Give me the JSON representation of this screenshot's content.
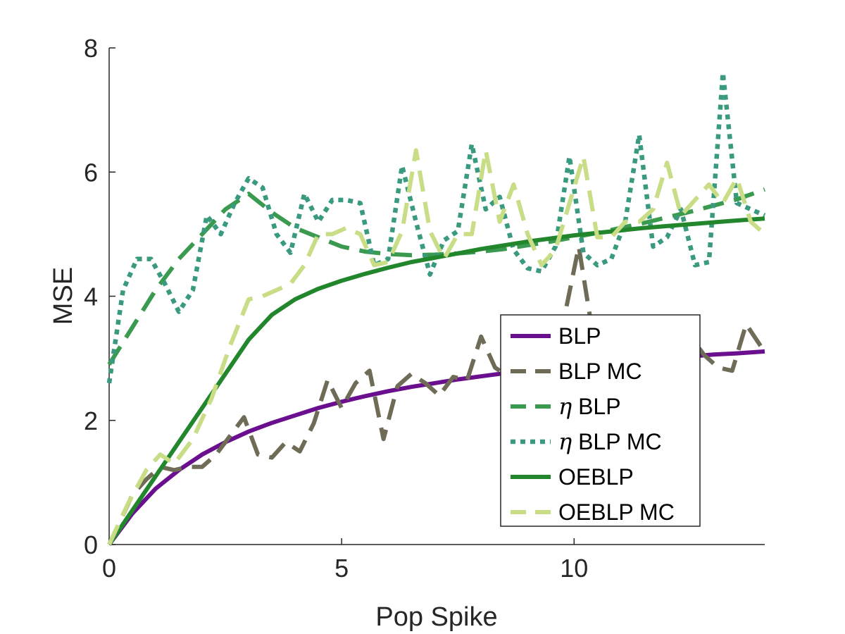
{
  "chart_data": {
    "type": "line",
    "title": "",
    "xlabel": "Pop Spike",
    "ylabel": "MSE",
    "xlim": [
      0,
      14.1
    ],
    "ylim": [
      0,
      8
    ],
    "xticks": [
      0,
      5,
      10
    ],
    "yticks": [
      0,
      2,
      4,
      6,
      8
    ],
    "grid": false,
    "legend_position": "lower-right",
    "series": [
      {
        "name": "BLP",
        "style": "solid",
        "color": "#6a0f8e",
        "x": [
          0,
          0.5,
          1,
          1.5,
          2,
          2.5,
          3,
          3.5,
          4,
          4.5,
          5,
          5.5,
          6,
          6.5,
          7,
          7.5,
          8,
          8.5,
          9,
          9.5,
          10,
          10.5,
          11,
          11.5,
          12,
          12.5,
          13,
          13.5,
          14.1
        ],
        "y": [
          0,
          0.5,
          0.9,
          1.2,
          1.45,
          1.65,
          1.82,
          1.96,
          2.08,
          2.2,
          2.3,
          2.39,
          2.47,
          2.54,
          2.6,
          2.66,
          2.71,
          2.76,
          2.8,
          2.84,
          2.88,
          2.91,
          2.95,
          2.98,
          3.0,
          3.03,
          3.06,
          3.08,
          3.11
        ]
      },
      {
        "name": "BLP MC",
        "style": "dashed",
        "color": "#6e6b56",
        "x": [
          0,
          0.5,
          0.8,
          1.1,
          1.4,
          1.7,
          2.0,
          2.3,
          2.6,
          2.9,
          3.2,
          3.5,
          3.8,
          4.1,
          4.4,
          4.7,
          5.0,
          5.3,
          5.6,
          5.9,
          6.2,
          6.5,
          6.8,
          7.1,
          7.4,
          7.7,
          8.0,
          8.3,
          8.6,
          8.9,
          9.2,
          9.5,
          9.8,
          10.1,
          10.4,
          10.7,
          11.0,
          11.3,
          11.6,
          11.9,
          12.2,
          12.5,
          12.8,
          13.1,
          13.4,
          13.7,
          14.1
        ],
        "y": [
          0,
          0.8,
          1.05,
          1.25,
          1.2,
          1.25,
          1.25,
          1.45,
          1.75,
          2.05,
          1.45,
          1.4,
          1.65,
          1.5,
          1.95,
          2.65,
          2.2,
          2.6,
          2.8,
          1.7,
          2.55,
          2.75,
          2.6,
          2.4,
          2.7,
          2.65,
          3.35,
          2.85,
          2.7,
          2.95,
          3.1,
          3.25,
          3.7,
          4.8,
          3.4,
          3.0,
          3.05,
          3.0,
          2.95,
          3.2,
          3.25,
          3.35,
          3.05,
          2.85,
          2.8,
          3.55,
          3.1
        ]
      },
      {
        "name": "η BLP",
        "style": "dashed",
        "color": "#3a9a4f",
        "x": [
          0,
          0.5,
          1,
          1.5,
          2,
          2.5,
          3,
          3.5,
          4,
          4.5,
          5,
          5.5,
          6,
          6.5,
          7,
          7.5,
          8,
          8.5,
          9,
          9.5,
          10,
          10.5,
          11,
          11.5,
          12,
          12.5,
          13,
          13.5,
          14.1
        ],
        "y": [
          2.9,
          3.5,
          4.1,
          4.6,
          5.0,
          5.4,
          5.65,
          5.35,
          5.1,
          4.95,
          4.8,
          4.72,
          4.68,
          4.66,
          4.67,
          4.69,
          4.72,
          4.76,
          4.82,
          4.88,
          4.95,
          5.02,
          5.1,
          5.18,
          5.27,
          5.36,
          5.46,
          5.56,
          5.72
        ]
      },
      {
        "name": "η BLP MC",
        "style": "dotted",
        "color": "#3a9a7f",
        "x": [
          0,
          0.3,
          0.6,
          0.9,
          1.2,
          1.5,
          1.8,
          2.1,
          2.4,
          2.7,
          3.0,
          3.3,
          3.6,
          3.9,
          4.2,
          4.5,
          4.8,
          5.1,
          5.4,
          5.7,
          6.0,
          6.3,
          6.6,
          6.9,
          7.2,
          7.5,
          7.8,
          8.1,
          8.4,
          8.7,
          9.0,
          9.3,
          9.6,
          9.9,
          10.2,
          10.5,
          10.8,
          11.1,
          11.4,
          11.7,
          12.0,
          12.3,
          12.6,
          12.9,
          13.2,
          13.5,
          13.8,
          14.1
        ],
        "y": [
          2.6,
          4.1,
          4.6,
          4.6,
          4.2,
          3.75,
          4.1,
          5.3,
          5.0,
          5.5,
          5.9,
          5.75,
          5.0,
          4.7,
          5.65,
          5.2,
          5.55,
          5.55,
          5.5,
          4.5,
          4.6,
          6.1,
          5.2,
          4.35,
          4.9,
          5.05,
          6.45,
          5.4,
          5.6,
          4.75,
          4.45,
          4.4,
          4.8,
          6.25,
          4.7,
          4.5,
          4.6,
          5.2,
          6.6,
          4.8,
          4.95,
          5.4,
          4.5,
          4.55,
          7.6,
          5.5,
          5.4,
          5.3
        ]
      },
      {
        "name": "OEBLP",
        "style": "solid",
        "color": "#22862c",
        "x": [
          0,
          0.5,
          1,
          1.5,
          2,
          2.5,
          3,
          3.5,
          4,
          4.5,
          5,
          5.5,
          6,
          6.5,
          7,
          7.5,
          8,
          8.5,
          9,
          9.5,
          10,
          10.5,
          11,
          11.5,
          12,
          12.5,
          13,
          13.5,
          14.1
        ],
        "y": [
          0,
          0.55,
          1.1,
          1.65,
          2.2,
          2.75,
          3.3,
          3.7,
          3.95,
          4.12,
          4.25,
          4.36,
          4.46,
          4.55,
          4.62,
          4.69,
          4.76,
          4.82,
          4.88,
          4.93,
          4.98,
          5.02,
          5.06,
          5.1,
          5.13,
          5.16,
          5.19,
          5.22,
          5.25
        ]
      },
      {
        "name": "OEBLP MC",
        "style": "dashed",
        "color": "#c8dd86",
        "x": [
          0,
          0.4,
          0.8,
          1.1,
          1.4,
          1.8,
          2.2,
          2.6,
          3.0,
          3.3,
          3.6,
          3.9,
          4.2,
          4.5,
          4.8,
          5.1,
          5.4,
          5.7,
          6.0,
          6.3,
          6.6,
          6.9,
          7.2,
          7.5,
          7.8,
          8.1,
          8.4,
          8.7,
          9.0,
          9.3,
          9.6,
          9.9,
          10.2,
          10.5,
          10.8,
          11.1,
          11.4,
          11.7,
          12.0,
          12.3,
          12.6,
          12.9,
          13.2,
          13.5,
          13.8,
          14.1
        ],
        "y": [
          0,
          0.65,
          1.2,
          1.45,
          1.3,
          1.7,
          2.35,
          3.2,
          3.95,
          4.0,
          4.1,
          4.2,
          4.5,
          5.0,
          5.0,
          5.1,
          5.0,
          4.5,
          4.55,
          5.05,
          6.35,
          5.05,
          4.6,
          5.0,
          5.0,
          6.35,
          5.2,
          5.8,
          5.0,
          4.5,
          4.75,
          5.5,
          6.25,
          4.95,
          4.95,
          5.2,
          5.2,
          5.4,
          6.15,
          5.3,
          5.55,
          5.8,
          5.5,
          5.9,
          5.2,
          5.0
        ]
      }
    ]
  }
}
